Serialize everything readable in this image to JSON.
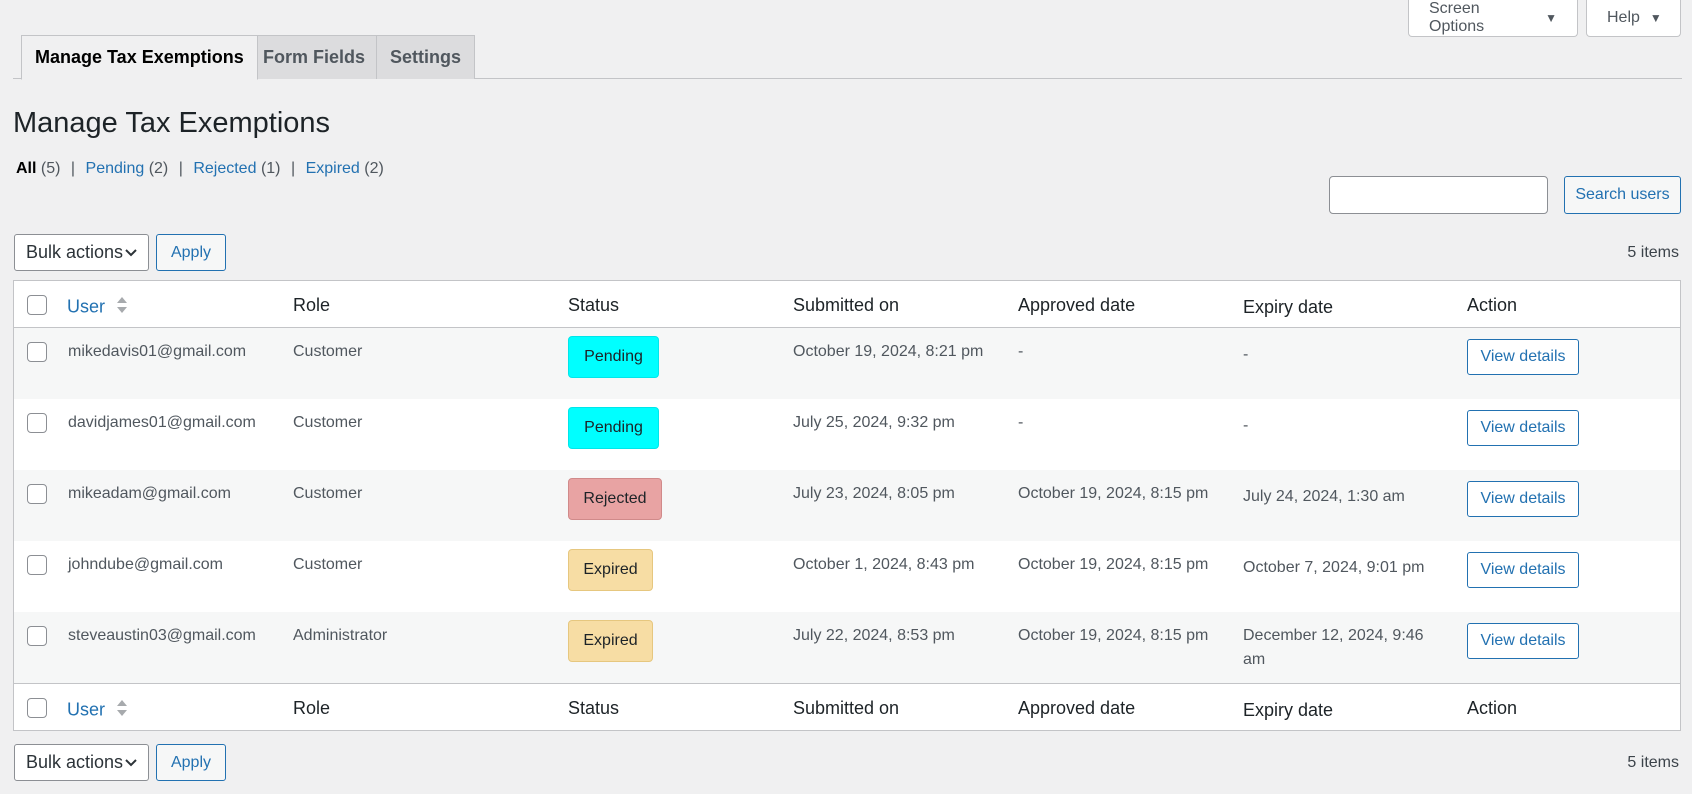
{
  "screen_meta": {
    "screen_options_label": "Screen Options",
    "help_label": "Help",
    "dropdown_glyph": "▼"
  },
  "tabs": [
    {
      "label": "Manage Tax Exemptions",
      "active": true
    },
    {
      "label": "Form Fields",
      "active": false
    },
    {
      "label": "Settings",
      "active": false
    }
  ],
  "page_title": "Manage Tax Exemptions",
  "filters": [
    {
      "label": "All",
      "count": "(5)",
      "current": true
    },
    {
      "label": "Pending",
      "count": "(2)",
      "current": false
    },
    {
      "label": "Rejected",
      "count": "(1)",
      "current": false
    },
    {
      "label": "Expired",
      "count": "(2)",
      "current": false
    }
  ],
  "filter_separator": "|",
  "search": {
    "value": "",
    "button_label": "Search users"
  },
  "bulk_actions": {
    "selected": "Bulk actions",
    "apply_label": "Apply"
  },
  "items_count": "5 items",
  "columns": {
    "user": "User",
    "role": "Role",
    "status": "Status",
    "submitted": "Submitted on",
    "approved": "Approved date",
    "expiry": "Expiry date",
    "action": "Action"
  },
  "rows": [
    {
      "user": "mikedavis01@gmail.com",
      "role": "Customer",
      "status": "Pending",
      "submitted": "October 19, 2024, 8:21 pm",
      "approved": "-",
      "expiry": "-",
      "action": "View details"
    },
    {
      "user": "davidjames01@gmail.com",
      "role": "Customer",
      "status": "Pending",
      "submitted": "July 25, 2024, 9:32 pm",
      "approved": "-",
      "expiry": "-",
      "action": "View details"
    },
    {
      "user": "mikeadam@gmail.com",
      "role": "Customer",
      "status": "Rejected",
      "submitted": "July 23, 2024, 8:05 pm",
      "approved": "October 19, 2024, 8:15 pm",
      "expiry": "July 24, 2024, 1:30 am",
      "action": "View details"
    },
    {
      "user": "johndube@gmail.com",
      "role": "Customer",
      "status": "Expired",
      "submitted": "October 1, 2024, 8:43 pm",
      "approved": "October 19, 2024, 8:15 pm",
      "expiry": "October 7, 2024, 9:01 pm",
      "action": "View details"
    },
    {
      "user": "steveaustin03@gmail.com",
      "role": "Administrator",
      "status": "Expired",
      "submitted": "July 22, 2024, 8:53 pm",
      "approved": "October 19, 2024, 8:15 pm",
      "expiry": "December 12, 2024, 9:46 am",
      "action": "View details"
    }
  ],
  "colors": {
    "link": "#2271b1",
    "pending": "#00ffff",
    "rejected": "#e8a3a3",
    "expired": "#f7dda4"
  }
}
